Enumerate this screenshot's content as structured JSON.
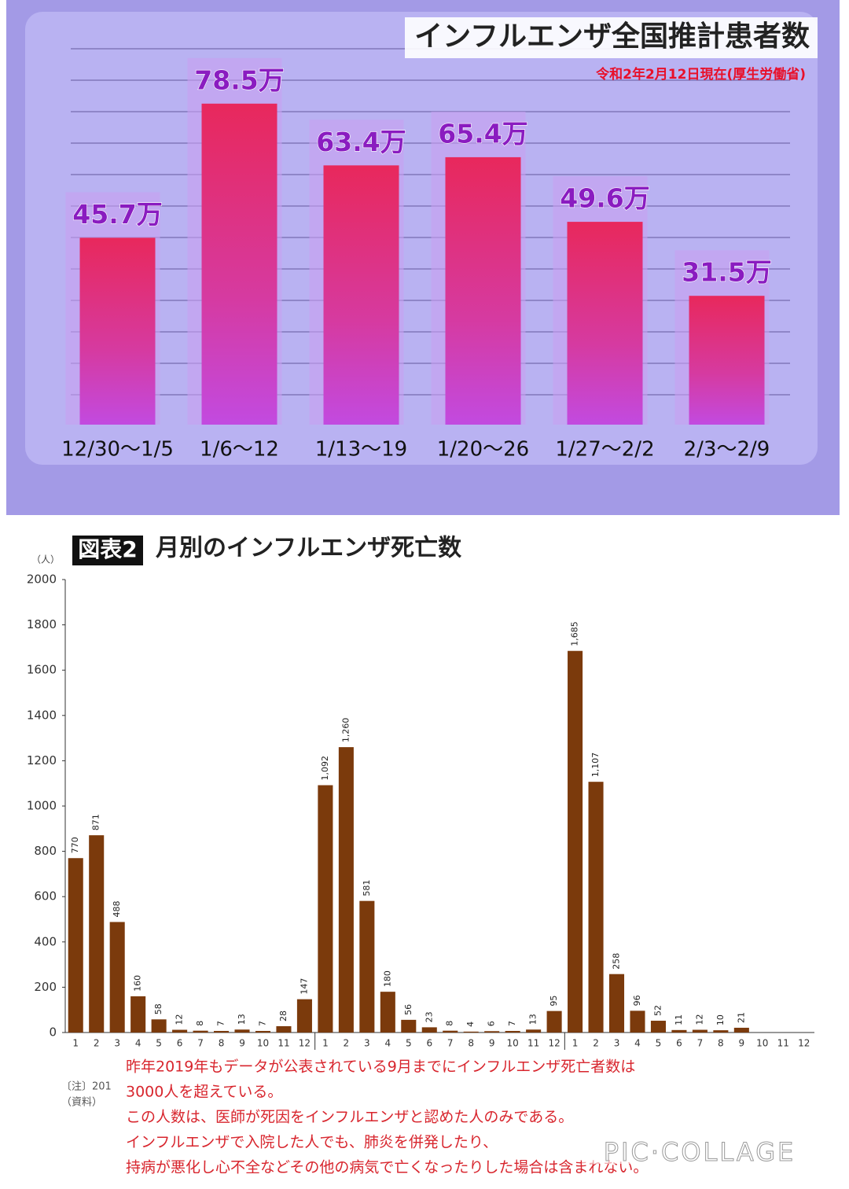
{
  "chart_data": [
    {
      "type": "bar",
      "title": "インフルエンザ全国推計患者数",
      "subtitle": "令和2年2月12日現在(厚生労働省)",
      "categories": [
        "12/30～1/5",
        "1/6～12",
        "1/13～19",
        "1/20～26",
        "1/27～2/2",
        "2/3～2/9"
      ],
      "values": [
        45.7,
        78.5,
        63.4,
        65.4,
        49.6,
        31.5
      ],
      "value_labels": [
        "45.7万",
        "78.5万",
        "63.4万",
        "65.4万",
        "49.6万",
        "31.5万"
      ]
    },
    {
      "type": "bar",
      "badge": "図表2",
      "title": "月別のインフルエンザ死亡数",
      "y_label": "（人）",
      "categories": [
        "1",
        "2",
        "3",
        "4",
        "5",
        "6",
        "7",
        "8",
        "9",
        "10",
        "11",
        "12",
        "1",
        "2",
        "3",
        "4",
        "5",
        "6",
        "7",
        "8",
        "9",
        "10",
        "11",
        "12",
        "1",
        "2",
        "3",
        "4",
        "5",
        "6",
        "7",
        "8",
        "9",
        "10",
        "11",
        "12"
      ],
      "values": [
        770,
        871,
        488,
        160,
        58,
        12,
        8,
        7,
        13,
        7,
        28,
        147,
        1092,
        1260,
        581,
        180,
        56,
        23,
        8,
        4,
        6,
        7,
        13,
        95,
        1685,
        1107,
        258,
        96,
        52,
        11,
        12,
        10,
        21,
        null,
        null,
        null
      ],
      "value_labels": [
        "770",
        "871",
        "488",
        "160",
        "58",
        "12",
        "8",
        "7",
        "13",
        "7",
        "28",
        "147",
        "1,092",
        "1,260",
        "581",
        "180",
        "56",
        "23",
        "8",
        "4",
        "6",
        "7",
        "13",
        "95",
        "1,685",
        "1,107",
        "258",
        "96",
        "52",
        "11",
        "12",
        "10",
        "21",
        null,
        null,
        null
      ],
      "color": "#7b3a0c",
      "ylim": [
        0,
        2000
      ],
      "yticks": [
        0,
        200,
        400,
        600,
        800,
        1000,
        1200,
        1400,
        1600,
        1800,
        2000
      ],
      "notes": [
        "〔注〕201",
        "（資料）"
      ],
      "annotation": [
        "昨年2019年もデータが公表されている9月までにインフルエンザ死亡者数は",
        "3000人を超えている。",
        "この人数は、医師が死因をインフルエンザと認めた人のみである。",
        "インフルエンザで入院した人でも、肺炎を併発したり、",
        "持病が悪化し心不全などその他の病気で亡くなったりした場合は含まれない。"
      ],
      "watermark": "PIC·COLLAGE"
    }
  ]
}
